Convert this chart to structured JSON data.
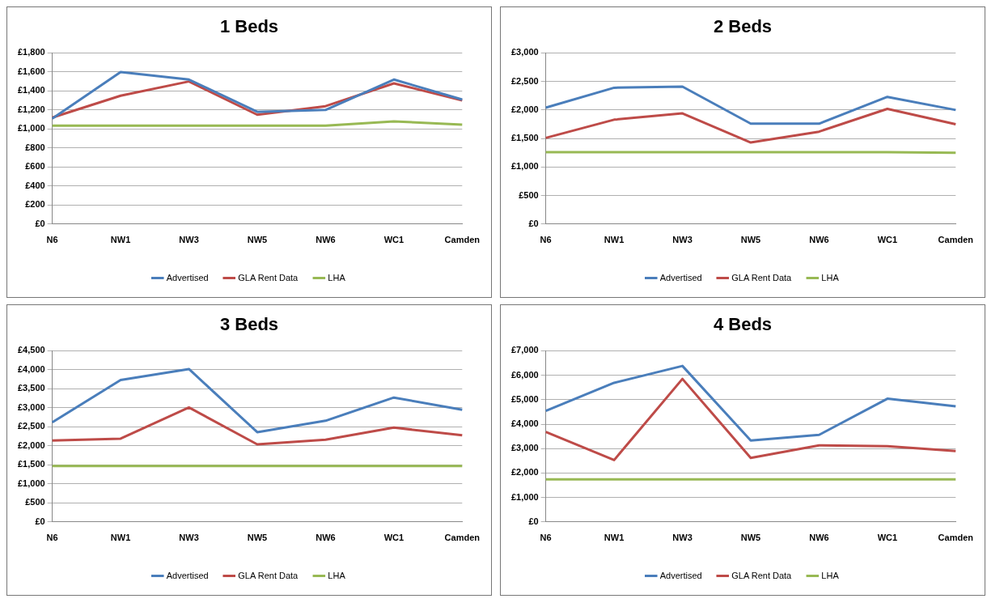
{
  "chart_data": [
    {
      "type": "line",
      "title": "1 Beds",
      "categories": [
        "N6",
        "NW1",
        "NW3",
        "NW5",
        "NW6",
        "WC1",
        "Camden"
      ],
      "ylim": [
        0,
        1800
      ],
      "yticks": [
        {
          "value": 0,
          "label": "£0"
        },
        {
          "value": 200,
          "label": "£200"
        },
        {
          "value": 400,
          "label": "£400"
        },
        {
          "value": 600,
          "label": "£600"
        },
        {
          "value": 800,
          "label": "£800"
        },
        {
          "value": 1000,
          "label": "£1,000"
        },
        {
          "value": 1200,
          "label": "£1,200"
        },
        {
          "value": 1400,
          "label": "£1,400"
        },
        {
          "value": 1600,
          "label": "£1,600"
        },
        {
          "value": 1800,
          "label": "£1,800"
        }
      ],
      "grid": "y",
      "legend": "bottom",
      "marker": "none",
      "line_style": "solid",
      "series": [
        {
          "name": "Advertised",
          "color": "#4a7ebb",
          "values": [
            1110,
            1600,
            1520,
            1180,
            1200,
            1520,
            1310
          ]
        },
        {
          "name": "GLA Rent Data",
          "color": "#be4b48",
          "values": [
            1120,
            1350,
            1500,
            1150,
            1240,
            1480,
            1300
          ]
        },
        {
          "name": "LHA",
          "color": "#98b954",
          "values": [
            1035,
            1035,
            1035,
            1035,
            1035,
            1080,
            1045
          ]
        }
      ]
    },
    {
      "type": "line",
      "title": "2 Beds",
      "categories": [
        "N6",
        "NW1",
        "NW3",
        "NW5",
        "NW6",
        "WC1",
        "Camden"
      ],
      "ylim": [
        0,
        3000
      ],
      "yticks": [
        {
          "value": 0,
          "label": "£0"
        },
        {
          "value": 500,
          "label": "£500"
        },
        {
          "value": 1000,
          "label": "£1,000"
        },
        {
          "value": 1500,
          "label": "£1,500"
        },
        {
          "value": 2000,
          "label": "£2,000"
        },
        {
          "value": 2500,
          "label": "£2,500"
        },
        {
          "value": 3000,
          "label": "£3,000"
        }
      ],
      "grid": "y",
      "legend": "bottom",
      "marker": "none",
      "line_style": "solid",
      "series": [
        {
          "name": "Advertised",
          "color": "#4a7ebb",
          "values": [
            2040,
            2390,
            2410,
            1760,
            1760,
            2230,
            2000
          ]
        },
        {
          "name": "GLA Rent Data",
          "color": "#be4b48",
          "values": [
            1510,
            1830,
            1940,
            1430,
            1620,
            2020,
            1750
          ]
        },
        {
          "name": "LHA",
          "color": "#98b954",
          "values": [
            1260,
            1260,
            1260,
            1260,
            1260,
            1260,
            1250
          ]
        }
      ]
    },
    {
      "type": "line",
      "title": "3 Beds",
      "categories": [
        "N6",
        "NW1",
        "NW3",
        "NW5",
        "NW6",
        "WC1",
        "Camden"
      ],
      "ylim": [
        0,
        4500
      ],
      "yticks": [
        {
          "value": 0,
          "label": "£0"
        },
        {
          "value": 500,
          "label": "£500"
        },
        {
          "value": 1000,
          "label": "£1,000"
        },
        {
          "value": 1500,
          "label": "£1,500"
        },
        {
          "value": 2000,
          "label": "£2,000"
        },
        {
          "value": 2500,
          "label": "£2,500"
        },
        {
          "value": 3000,
          "label": "£3,000"
        },
        {
          "value": 3500,
          "label": "£3,500"
        },
        {
          "value": 4000,
          "label": "£4,000"
        },
        {
          "value": 4500,
          "label": "£4,500"
        }
      ],
      "grid": "y",
      "legend": "bottom",
      "marker": "none",
      "line_style": "solid",
      "series": [
        {
          "name": "Advertised",
          "color": "#4a7ebb",
          "values": [
            2620,
            3730,
            4020,
            2360,
            2660,
            3270,
            2950
          ]
        },
        {
          "name": "GLA Rent Data",
          "color": "#be4b48",
          "values": [
            2140,
            2190,
            3010,
            2040,
            2160,
            2480,
            2280
          ]
        },
        {
          "name": "LHA",
          "color": "#98b954",
          "values": [
            1470,
            1470,
            1470,
            1470,
            1470,
            1470,
            1470
          ]
        }
      ]
    },
    {
      "type": "line",
      "title": "4 Beds",
      "categories": [
        "N6",
        "NW1",
        "NW3",
        "NW5",
        "NW6",
        "WC1",
        "Camden"
      ],
      "ylim": [
        0,
        7000
      ],
      "yticks": [
        {
          "value": 0,
          "label": "£0"
        },
        {
          "value": 1000,
          "label": "£1,000"
        },
        {
          "value": 2000,
          "label": "£2,000"
        },
        {
          "value": 3000,
          "label": "£3,000"
        },
        {
          "value": 4000,
          "label": "£4,000"
        },
        {
          "value": 5000,
          "label": "£5,000"
        },
        {
          "value": 6000,
          "label": "£6,000"
        },
        {
          "value": 7000,
          "label": "£7,000"
        }
      ],
      "grid": "y",
      "legend": "bottom",
      "marker": "none",
      "line_style": "solid",
      "series": [
        {
          "name": "Advertised",
          "color": "#4a7ebb",
          "values": [
            4540,
            5690,
            6380,
            3330,
            3560,
            5040,
            4730
          ]
        },
        {
          "name": "GLA Rent Data",
          "color": "#be4b48",
          "values": [
            3680,
            2530,
            5850,
            2620,
            3130,
            3100,
            2900
          ]
        },
        {
          "name": "LHA",
          "color": "#98b954",
          "values": [
            1740,
            1740,
            1740,
            1740,
            1740,
            1740,
            1740
          ]
        }
      ]
    }
  ]
}
